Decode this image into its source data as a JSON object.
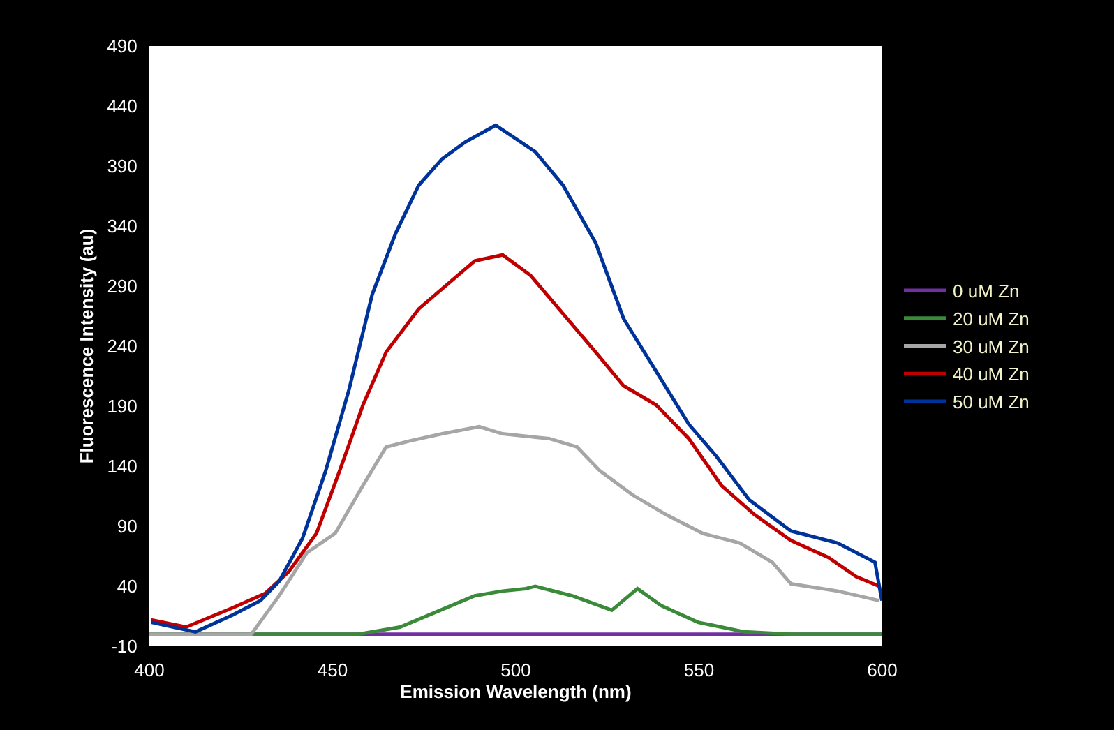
{
  "chart_data": {
    "type": "line",
    "xlabel": "Emission Wavelength (nm)",
    "ylabel": "Fluorescence Intensity (au)",
    "xlim": [
      400,
      600
    ],
    "xticks": [
      400,
      450,
      500,
      550,
      600
    ],
    "ylim": [
      -10,
      490
    ],
    "yticks": [
      -10,
      40,
      90,
      140,
      190,
      240,
      290,
      340,
      390,
      440,
      490
    ],
    "legend": "right",
    "marker": "none",
    "line_style": "solid",
    "series": [
      {
        "name": "0 uM Zn",
        "color": "#7030a0",
        "x": [
          400,
          600
        ],
        "values": [
          0,
          0
        ]
      },
      {
        "name": "20 uM Zn",
        "color": "#3a8a3a",
        "x": [
          400,
          457,
          468.4,
          478.6,
          488.8,
          496.4,
          502.7,
          505.3,
          515.4,
          526.2,
          533.2,
          539.6,
          549.7,
          562.4,
          575,
          600
        ],
        "values": [
          0,
          0,
          6,
          19,
          32,
          36,
          38,
          40,
          32,
          20,
          38,
          24,
          10,
          2,
          0,
          0
        ]
      },
      {
        "name": "30 uM Zn",
        "color": "#a6a6a6",
        "x": [
          400,
          427.8,
          435.4,
          443,
          450.7,
          458.3,
          464.6,
          471,
          479.9,
          490,
          496.4,
          502.7,
          509.1,
          516.7,
          523,
          531.9,
          540.8,
          551,
          561.1,
          570,
          575.1,
          587.8,
          599.2
        ],
        "values": [
          0,
          0,
          32,
          68,
          84,
          124,
          156,
          161,
          167,
          173,
          167,
          165,
          163,
          156,
          136,
          116,
          100,
          84,
          76,
          60,
          42,
          36,
          28
        ]
      },
      {
        "name": "40 uM Zn",
        "color": "#c00000",
        "x": [
          400.5,
          410,
          422.7,
          431.6,
          438,
          445.6,
          451.9,
          458.3,
          464.6,
          473.5,
          481.1,
          488.8,
          496.4,
          504,
          512.9,
          521.8,
          529.4,
          538.3,
          547.2,
          556.1,
          565,
          575.1,
          585.3,
          592.9,
          599.2
        ],
        "values": [
          12,
          6,
          22,
          34,
          52,
          84,
          136,
          191,
          235,
          271,
          291,
          311,
          316,
          299,
          267,
          235,
          207,
          191,
          163,
          124,
          100,
          78,
          64,
          48,
          40
        ]
      },
      {
        "name": "50 uM Zn",
        "color": "#003399",
        "x": [
          400.5,
          412.6,
          422.7,
          430.3,
          435.4,
          441.8,
          448.1,
          454.5,
          460.8,
          467.2,
          473.5,
          479.9,
          486.2,
          494.5,
          505.3,
          512.9,
          521.8,
          529.4,
          538.3,
          547.2,
          554.8,
          563.7,
          575.1,
          587.8,
          598,
          599.9
        ],
        "values": [
          10,
          2,
          16,
          28,
          44,
          80,
          136,
          204,
          283,
          334,
          374,
          396,
          410,
          424,
          402,
          374,
          326,
          263,
          219,
          175,
          148,
          112,
          86,
          76,
          60,
          28
        ]
      }
    ]
  }
}
